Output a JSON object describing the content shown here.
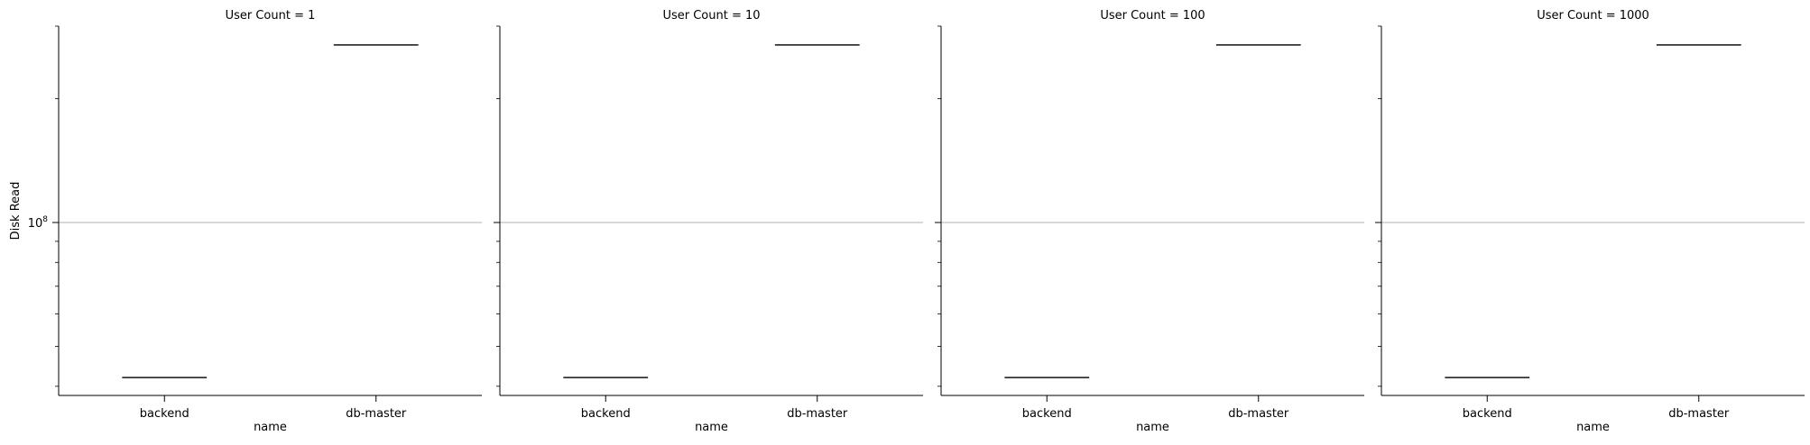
{
  "chart_data": [
    {
      "type": "box",
      "title": "User Count = 1",
      "xlabel": "name",
      "ylabel": "Disk Read",
      "categories": [
        "backend",
        "db-master"
      ],
      "values": [
        42000000,
        270000000
      ],
      "yscale": "log",
      "ylim": [
        38000000,
        300000000
      ],
      "yticks": [
        {
          "value": 100000000,
          "base": "10",
          "exp": "8"
        }
      ],
      "grid": "major y"
    },
    {
      "type": "box",
      "title": "User Count = 10",
      "xlabel": "name",
      "ylabel": "",
      "categories": [
        "backend",
        "db-master"
      ],
      "values": [
        42000000,
        270000000
      ],
      "yscale": "log",
      "ylim": [
        38000000,
        300000000
      ],
      "yticks": [],
      "grid": "major y"
    },
    {
      "type": "box",
      "title": "User Count = 100",
      "xlabel": "name",
      "ylabel": "",
      "categories": [
        "backend",
        "db-master"
      ],
      "values": [
        42000000,
        270000000
      ],
      "yscale": "log",
      "ylim": [
        38000000,
        300000000
      ],
      "yticks": [],
      "grid": "major y"
    },
    {
      "type": "box",
      "title": "User Count = 1000",
      "xlabel": "name",
      "ylabel": "",
      "categories": [
        "backend",
        "db-master"
      ],
      "values": [
        42000000,
        270000000
      ],
      "yscale": "log",
      "ylim": [
        38000000,
        300000000
      ],
      "yticks": [],
      "grid": "major y"
    }
  ]
}
